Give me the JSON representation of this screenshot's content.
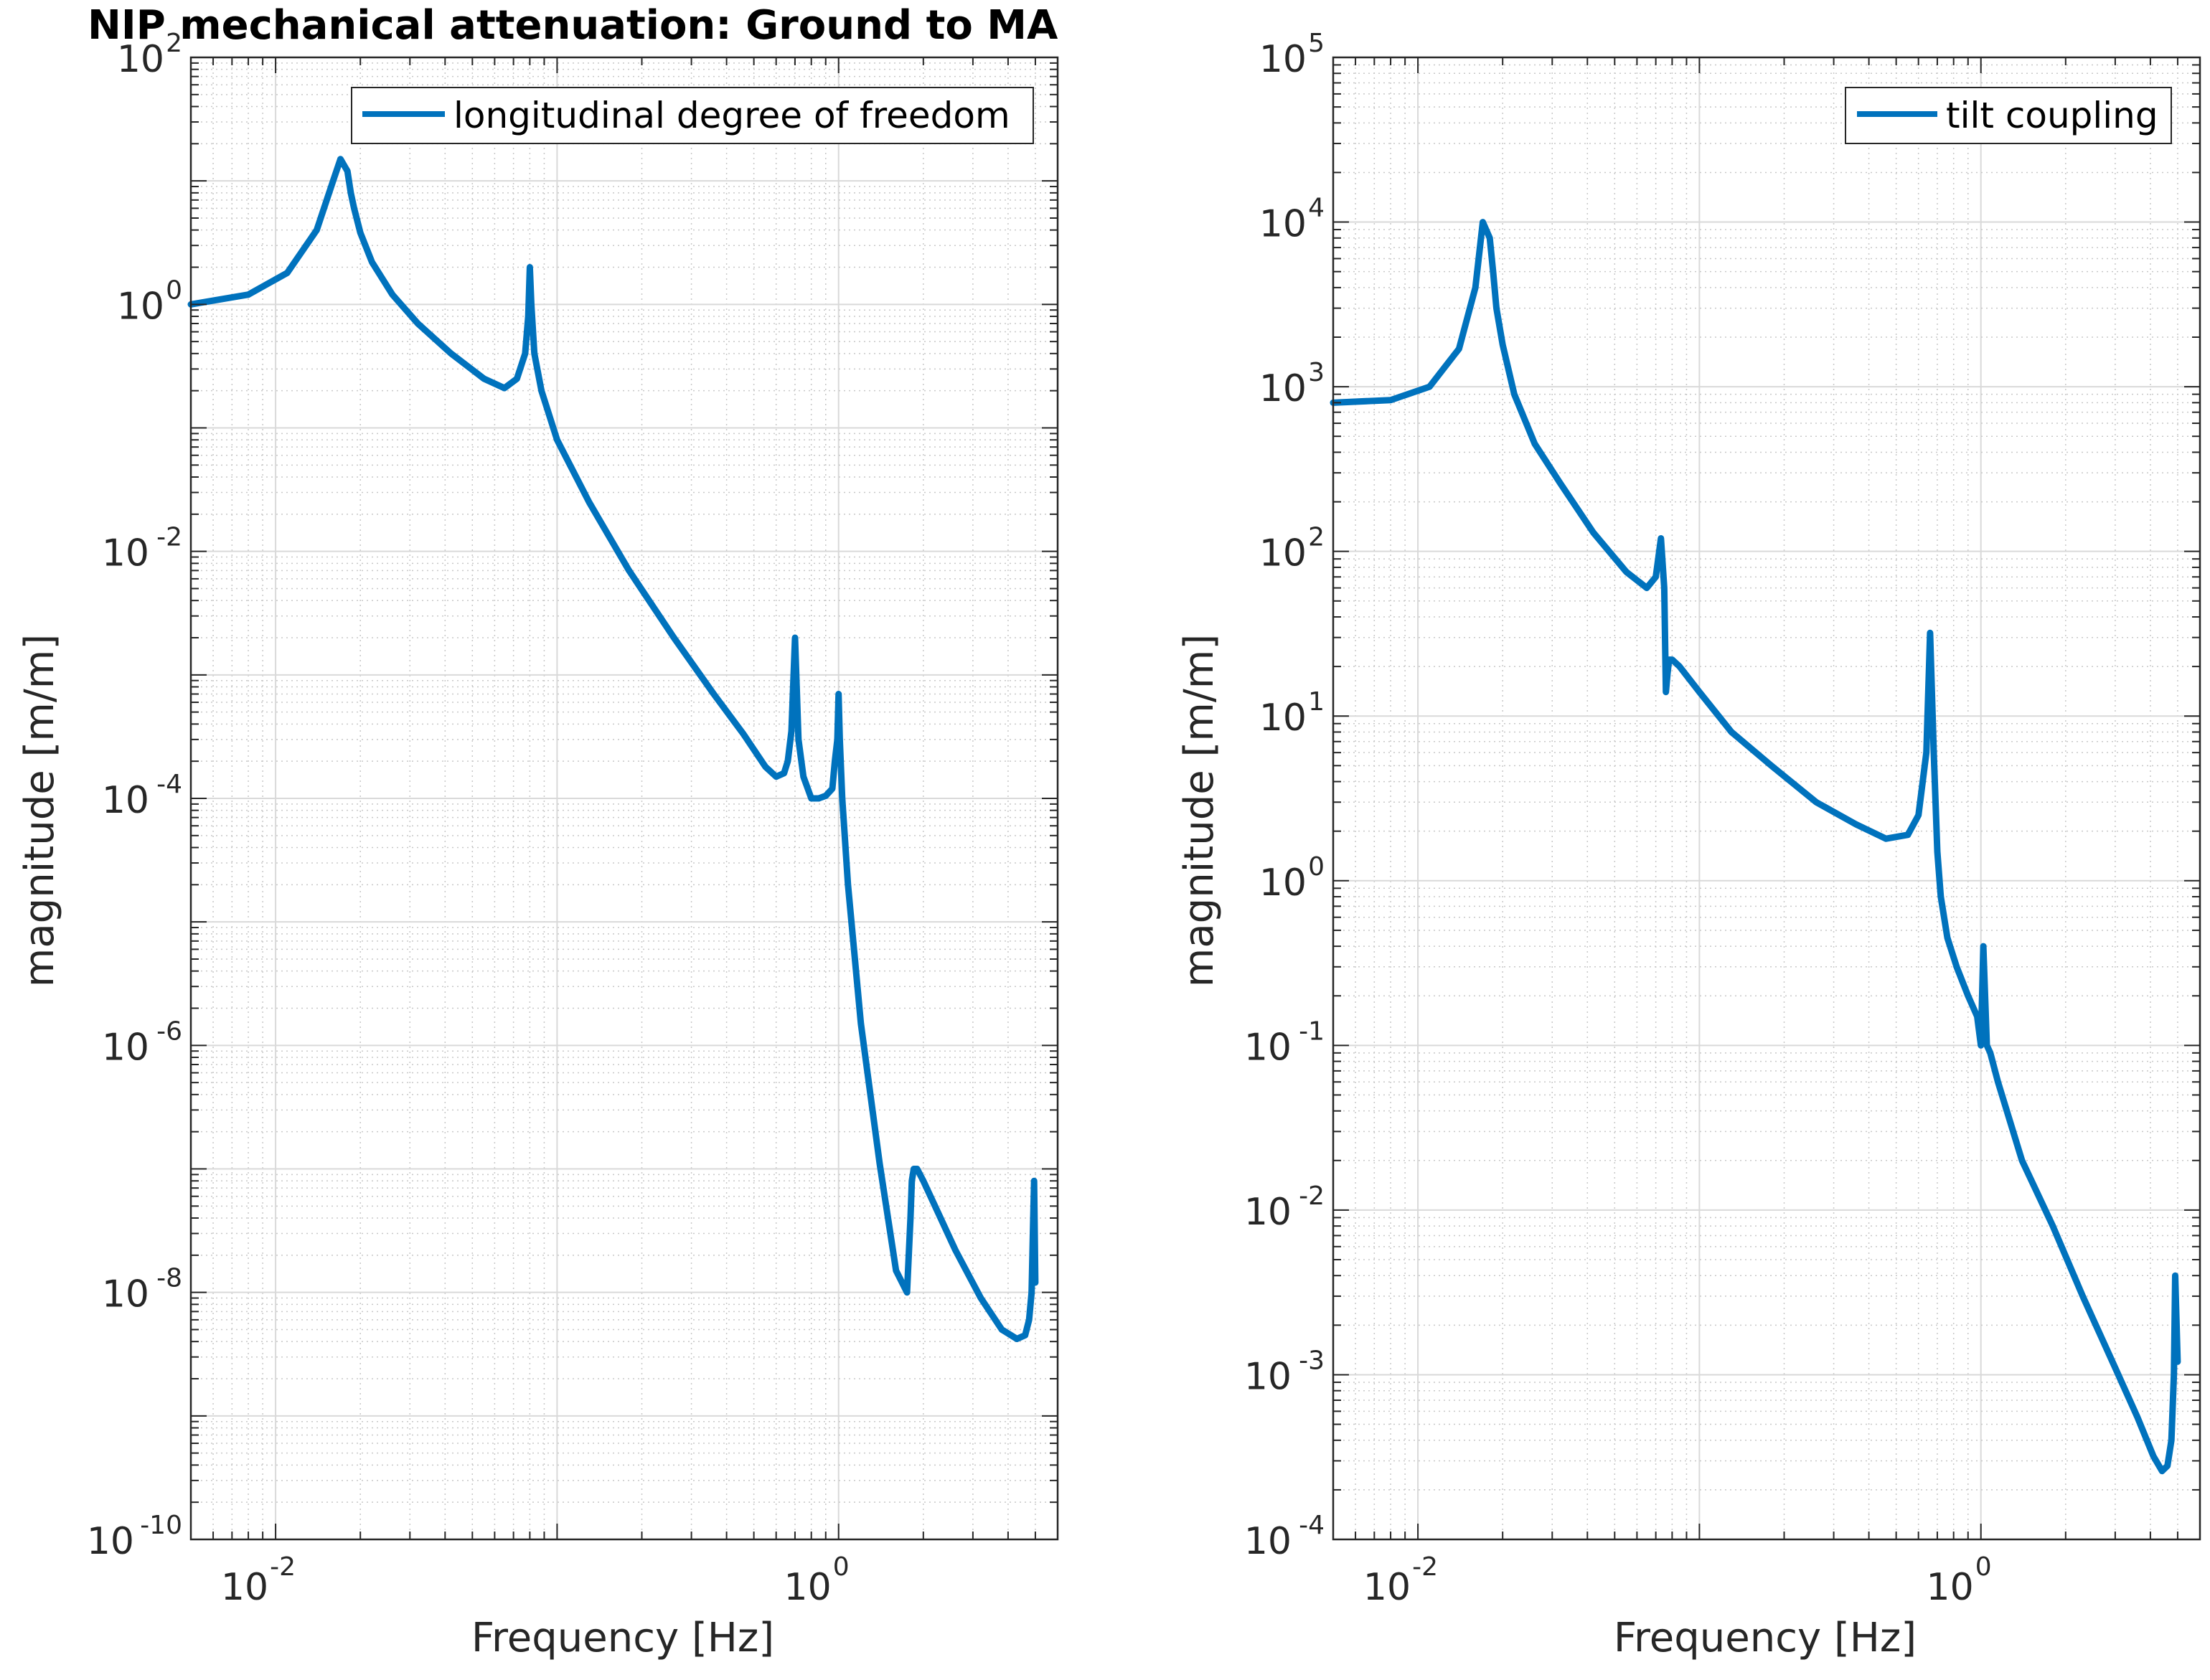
{
  "figure": {
    "title": "NIP mechanical attenuation: Ground to MA"
  },
  "colors": {
    "series": "#0072BD",
    "axis": "#262626",
    "grid_major": "#d9d9d9",
    "grid_minor": "#c8c8c8",
    "background": "#ffffff"
  },
  "chart_data": [
    {
      "type": "line",
      "xscale": "log",
      "yscale": "log",
      "xlim": [
        0.005,
        6
      ],
      "ylim": [
        1e-10,
        100
      ],
      "xlabel": "Frequency [Hz]",
      "ylabel": "magnitude [m/m]",
      "xticks": [
        {
          "value": 0.01,
          "base": "10",
          "exp": "-2"
        },
        {
          "value": 1,
          "base": "10",
          "exp": "0"
        }
      ],
      "yticks": [
        {
          "value": 100,
          "base": "10",
          "exp": "2"
        },
        {
          "value": 1,
          "base": "10",
          "exp": "0"
        },
        {
          "value": 0.01,
          "base": "10",
          "exp": "-2"
        },
        {
          "value": 0.0001,
          "base": "10",
          "exp": "-4"
        },
        {
          "value": 1e-06,
          "base": "10",
          "exp": "-6"
        },
        {
          "value": 1e-08,
          "base": "10",
          "exp": "-8"
        },
        {
          "value": 1e-10,
          "base": "10",
          "exp": "-10"
        }
      ],
      "grid": true,
      "legend_position": "top-right",
      "series": [
        {
          "name": "longitudinal degree of freedom",
          "x": [
            0.005,
            0.008,
            0.011,
            0.014,
            0.016,
            0.017,
            0.018,
            0.0185,
            0.019,
            0.02,
            0.022,
            0.026,
            0.032,
            0.042,
            0.055,
            0.065,
            0.072,
            0.077,
            0.079,
            0.08,
            0.081,
            0.083,
            0.088,
            0.1,
            0.13,
            0.18,
            0.26,
            0.36,
            0.46,
            0.55,
            0.6,
            0.64,
            0.66,
            0.68,
            0.7,
            0.72,
            0.75,
            0.8,
            0.85,
            0.9,
            0.95,
            0.97,
            0.99,
            1.0,
            1.01,
            1.03,
            1.08,
            1.2,
            1.4,
            1.6,
            1.75,
            1.8,
            1.82,
            1.85,
            1.9,
            2.0,
            2.2,
            2.6,
            3.2,
            3.8,
            4.3,
            4.6,
            4.75,
            4.85,
            4.9,
            4.95,
            5.0
          ],
          "y": [
            1.0,
            1.2,
            1.8,
            4.0,
            10.0,
            15.0,
            12.0,
            8.0,
            6.0,
            3.8,
            2.2,
            1.2,
            0.7,
            0.4,
            0.25,
            0.21,
            0.25,
            0.4,
            0.8,
            2.0,
            1.0,
            0.4,
            0.2,
            0.08,
            0.025,
            0.007,
            0.002,
            0.0007,
            0.00033,
            0.00018,
            0.00015,
            0.00016,
            0.0002,
            0.00035,
            0.002,
            0.0003,
            0.00015,
            0.0001,
            0.0001,
            0.000105,
            0.00012,
            0.0002,
            0.0003,
            0.0007,
            0.0003,
            0.0001,
            2e-05,
            1.5e-06,
            1.1e-07,
            1.5e-08,
            1e-08,
            4e-08,
            8e-08,
            1e-07,
            1e-07,
            8e-08,
            5e-08,
            2.2e-08,
            9e-09,
            5e-09,
            4.2e-09,
            4.5e-09,
            6e-09,
            1e-08,
            3e-08,
            8e-08,
            1.2e-08
          ]
        }
      ]
    },
    {
      "type": "line",
      "xscale": "log",
      "yscale": "log",
      "xlim": [
        0.005,
        6
      ],
      "ylim": [
        0.0001,
        100000
      ],
      "xlabel": "Frequency [Hz]",
      "ylabel": "magnitude [m/m]",
      "xticks": [
        {
          "value": 0.01,
          "base": "10",
          "exp": "-2"
        },
        {
          "value": 1,
          "base": "10",
          "exp": "0"
        }
      ],
      "yticks": [
        {
          "value": 100000,
          "base": "10",
          "exp": "5"
        },
        {
          "value": 10000,
          "base": "10",
          "exp": "4"
        },
        {
          "value": 1000,
          "base": "10",
          "exp": "3"
        },
        {
          "value": 100,
          "base": "10",
          "exp": "2"
        },
        {
          "value": 10,
          "base": "10",
          "exp": "1"
        },
        {
          "value": 1,
          "base": "10",
          "exp": "0"
        },
        {
          "value": 0.1,
          "base": "10",
          "exp": "-1"
        },
        {
          "value": 0.01,
          "base": "10",
          "exp": "-2"
        },
        {
          "value": 0.001,
          "base": "10",
          "exp": "-3"
        },
        {
          "value": 0.0001,
          "base": "10",
          "exp": "-4"
        }
      ],
      "grid": true,
      "legend_position": "top-right",
      "series": [
        {
          "name": "tilt coupling",
          "x": [
            0.005,
            0.008,
            0.011,
            0.014,
            0.016,
            0.017,
            0.018,
            0.0185,
            0.019,
            0.02,
            0.022,
            0.026,
            0.032,
            0.042,
            0.055,
            0.065,
            0.07,
            0.073,
            0.075,
            0.076,
            0.077,
            0.078,
            0.08,
            0.085,
            0.1,
            0.13,
            0.18,
            0.26,
            0.36,
            0.46,
            0.55,
            0.6,
            0.64,
            0.66,
            0.68,
            0.7,
            0.72,
            0.76,
            0.82,
            0.9,
            0.97,
            1.0,
            1.02,
            1.05,
            1.08,
            1.15,
            1.4,
            1.8,
            2.3,
            3.0,
            3.6,
            4.1,
            4.4,
            4.6,
            4.75,
            4.85,
            4.9,
            5.0
          ],
          "y": [
            800,
            830,
            1000,
            1700,
            4000,
            10000,
            8000,
            5000,
            3000,
            1800,
            900,
            450,
            260,
            130,
            75,
            60,
            70,
            120,
            60,
            14,
            18,
            22,
            22,
            20,
            14,
            8,
            5,
            3,
            2.2,
            1.8,
            1.9,
            2.5,
            6,
            32,
            6,
            1.5,
            0.8,
            0.45,
            0.3,
            0.2,
            0.15,
            0.1,
            0.4,
            0.1,
            0.09,
            0.06,
            0.02,
            0.008,
            0.003,
            0.0011,
            0.00055,
            0.00032,
            0.00026,
            0.00028,
            0.0004,
            0.001,
            0.004,
            0.0012
          ]
        }
      ]
    }
  ]
}
